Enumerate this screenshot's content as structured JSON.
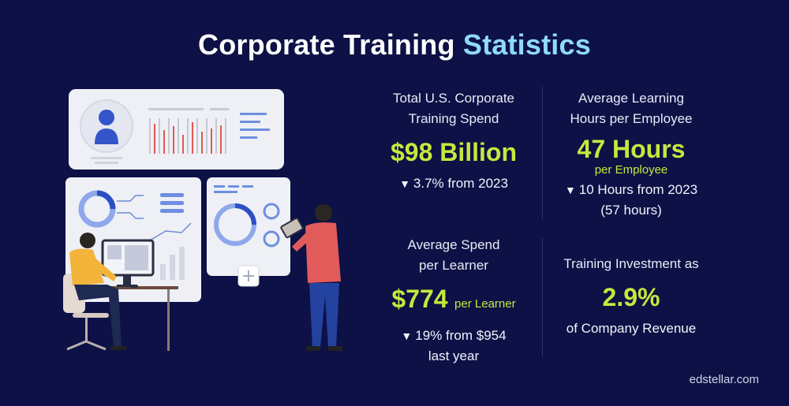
{
  "title": {
    "part1": "Corporate Training",
    "part2": "Statistics"
  },
  "stats": {
    "spend": {
      "label1": "Total U.S. Corporate",
      "label2": "Training Spend",
      "value": "$98 Billion",
      "change": "3.7% from 2023"
    },
    "hours": {
      "label1": "Average Learning",
      "label2": "Hours per Employee",
      "value": "47 Hours",
      "unit": "per Employee",
      "change": "10 Hours from 2023",
      "note": "(57 hours)"
    },
    "learner": {
      "label1": "Average Spend",
      "label2": "per Learner",
      "value": "$774",
      "unit": "per Learner",
      "change": "19% from $954",
      "note": "last year"
    },
    "investment": {
      "label": "Training Investment as",
      "value": "2.9%",
      "note": "of Company Revenue"
    }
  },
  "footer": "edstellar.com",
  "colors": {
    "background": "#0d1146",
    "accent_green": "#c6e83c",
    "accent_blue": "#8fd9ff"
  }
}
